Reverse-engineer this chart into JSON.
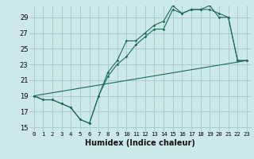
{
  "xlabel": "Humidex (Indice chaleur)",
  "background_color": "#cce8e8",
  "grid_color": "#aacccc",
  "line_color": "#1a6b5a",
  "xlim": [
    -0.5,
    23.5
  ],
  "ylim": [
    14.5,
    30.5
  ],
  "yticks": [
    15,
    17,
    19,
    21,
    23,
    25,
    27,
    29
  ],
  "xticks": [
    0,
    1,
    2,
    3,
    4,
    5,
    6,
    7,
    8,
    9,
    10,
    11,
    12,
    13,
    14,
    15,
    16,
    17,
    18,
    19,
    20,
    21,
    22,
    23
  ],
  "series1_x": [
    0,
    1,
    2,
    3,
    4,
    5,
    6,
    7,
    8,
    9,
    10,
    11,
    12,
    13,
    14,
    15,
    16,
    17,
    18,
    19,
    20,
    21,
    22,
    23
  ],
  "series1_y": [
    19,
    18.5,
    18.5,
    18,
    17.5,
    16,
    15.5,
    19,
    21.5,
    23,
    24,
    25.5,
    26.5,
    27.5,
    27.5,
    30,
    29.5,
    30,
    30,
    30,
    29.5,
    29,
    23.5,
    23.5
  ],
  "series2_x": [
    0,
    1,
    2,
    3,
    4,
    5,
    6,
    7,
    8,
    9,
    10,
    11,
    12,
    13,
    14,
    15,
    16,
    17,
    18,
    19,
    20,
    21,
    22,
    23
  ],
  "series2_y": [
    19,
    18.5,
    18.5,
    18,
    17.5,
    16,
    15.5,
    19,
    22,
    23.5,
    26,
    26,
    27,
    28,
    28.5,
    30.5,
    29.5,
    30,
    30,
    30.5,
    29,
    29,
    23.5,
    23.5
  ],
  "series3_x": [
    0,
    23
  ],
  "series3_y": [
    19,
    23.5
  ],
  "ylabel_fontsize": 6,
  "xlabel_fontsize": 7
}
